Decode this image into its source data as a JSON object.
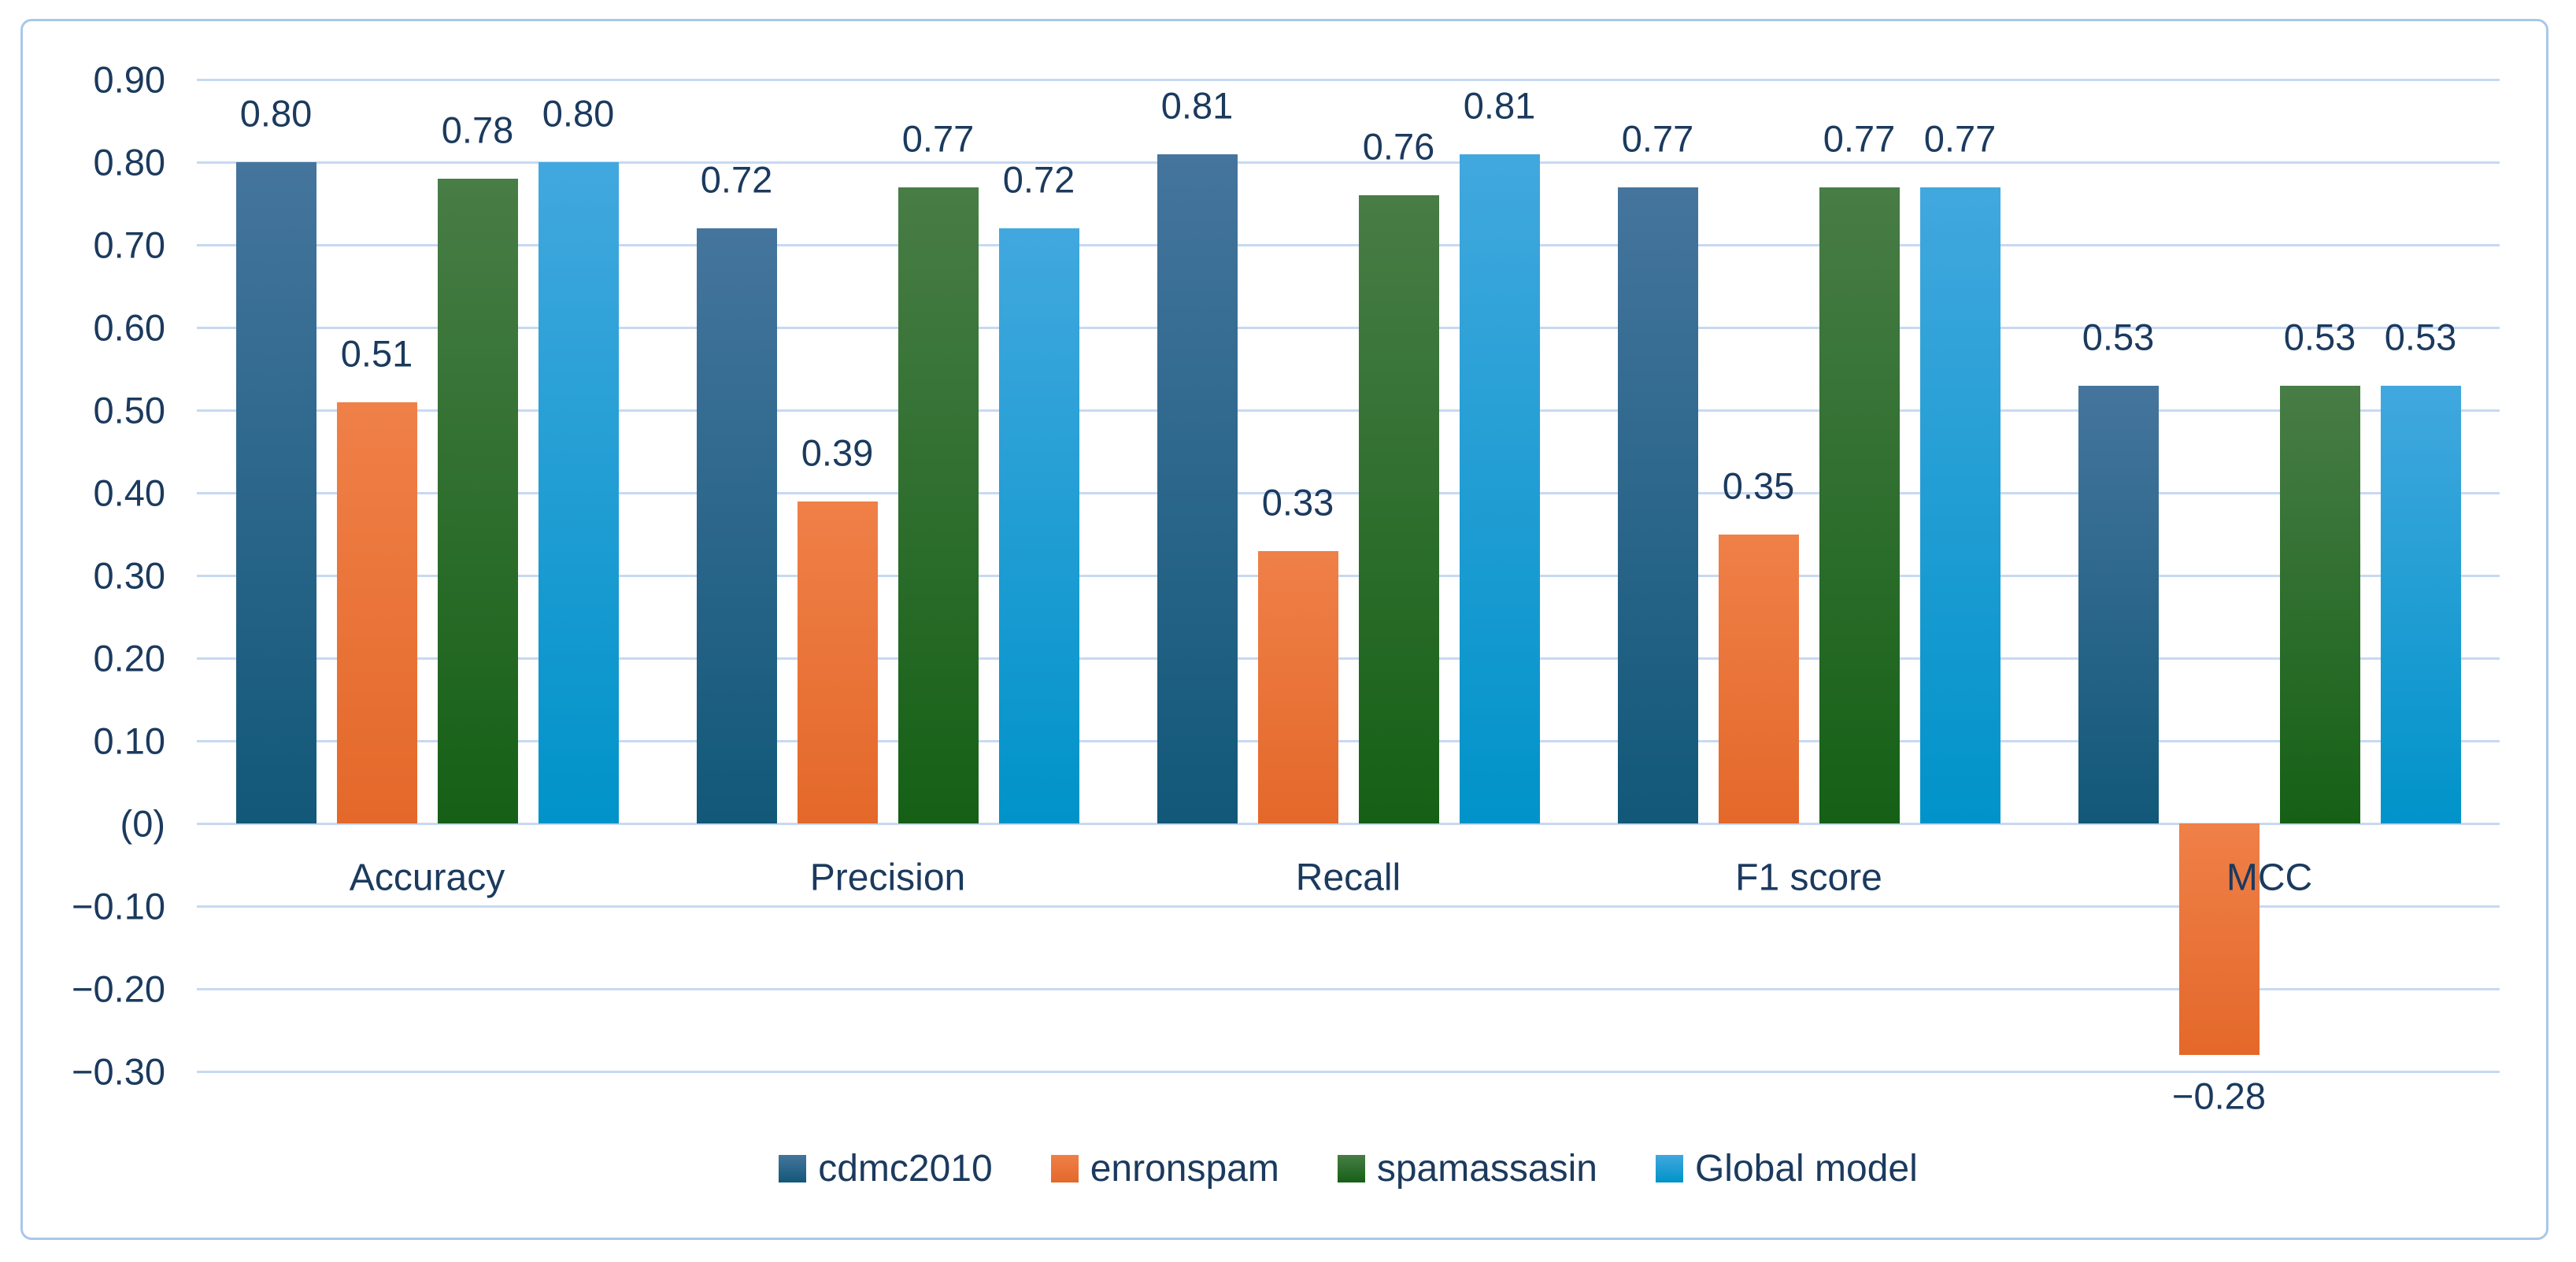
{
  "chart_data": {
    "type": "bar",
    "title": "",
    "categories": [
      "Accuracy",
      "Precision",
      "Recall",
      "F1 score",
      "MCC"
    ],
    "series": [
      {
        "name": "cdmc2010",
        "values": [
          0.8,
          0.72,
          0.81,
          0.77,
          0.53
        ],
        "labels": [
          "0.80",
          "0.72",
          "0.81",
          "0.77",
          "0.53"
        ],
        "gradient": [
          "#45759d",
          "#125878"
        ]
      },
      {
        "name": "enronspam",
        "values": [
          0.51,
          0.39,
          0.33,
          0.35,
          -0.28
        ],
        "labels": [
          "0.51",
          "0.39",
          "0.33",
          "0.35",
          "−0.28"
        ],
        "gradient": [
          "#ef8048",
          "#e4682a"
        ]
      },
      {
        "name": "spamassasin",
        "values": [
          0.78,
          0.77,
          0.76,
          0.77,
          0.53
        ],
        "labels": [
          "0.78",
          "0.77",
          "0.76",
          "0.77",
          "0.53"
        ],
        "gradient": [
          "#487d46",
          "#156016"
        ]
      },
      {
        "name": "Global model",
        "values": [
          0.8,
          0.72,
          0.81,
          0.77,
          0.53
        ],
        "labels": [
          "0.80",
          "0.72",
          "0.81",
          "0.77",
          "0.53"
        ],
        "gradient": [
          "#41a8de",
          "#0093c9"
        ]
      }
    ],
    "y_axis": {
      "min": -0.3,
      "max": 0.9,
      "step": 0.1,
      "ticks": [
        0.9,
        0.8,
        0.7,
        0.6,
        0.5,
        0.4,
        0.3,
        0.2,
        0.1,
        0.0,
        -0.1,
        -0.2,
        -0.3
      ],
      "tick_labels": [
        "0.90",
        "0.80",
        "0.70",
        "0.60",
        "0.50",
        "0.40",
        "0.30",
        "0.20",
        "0.10",
        "(0)",
        "−0.10",
        "−0.20",
        "−0.30"
      ]
    },
    "grid": true,
    "legend_position": "bottom",
    "colors": {
      "label_text": "#1b3a5e",
      "gridline": "#c7d9f2",
      "frame_border": "#a9c7ea",
      "background": "#ffffff"
    }
  },
  "legend": {
    "items": [
      "cdmc2010",
      "enronspam",
      "spamassasin",
      "Global model"
    ]
  }
}
